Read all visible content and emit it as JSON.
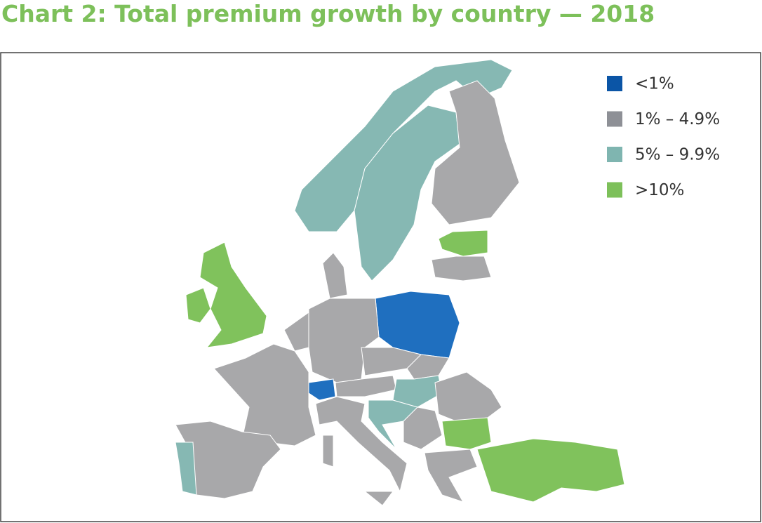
{
  "title": "Chart 2: Total premium growth by country — 2018",
  "legend": [
    {
      "label": "<1%",
      "color": "#0b55a6",
      "map_color": "#1f6fbf"
    },
    {
      "label": "1% – 4.9%",
      "color": "#8e9096",
      "map_color": "#a8a8aa"
    },
    {
      "label": "5% – 9.9%",
      "color": "#7fb5b0",
      "map_color": "#86b8b3"
    },
    {
      "label": ">10%",
      "color": "#7dc05a",
      "map_color": "#80c25c"
    }
  ]
}
